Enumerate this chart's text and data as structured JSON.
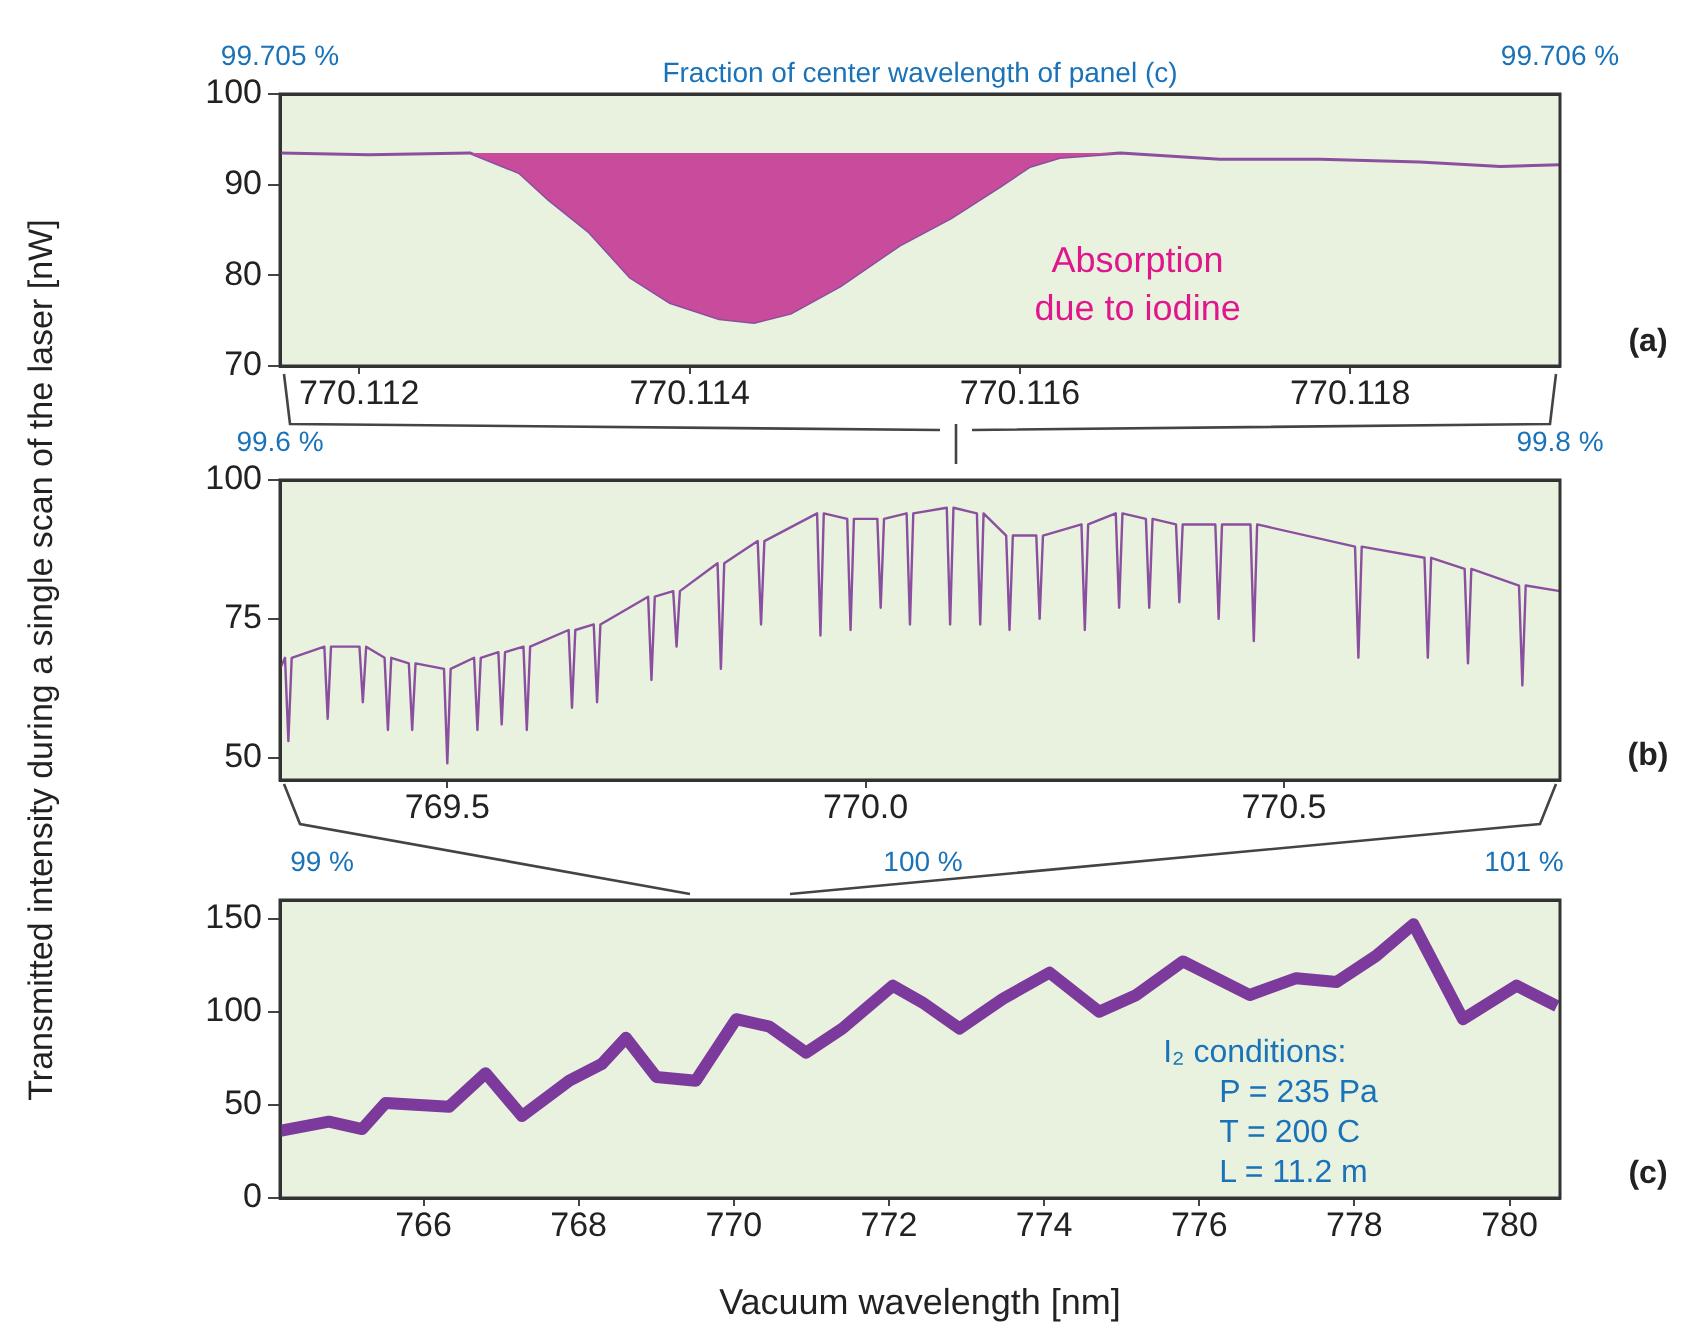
{
  "chart_data": [
    {
      "type": "line",
      "marker": "none",
      "x2label": "Fraction of center wavelength of panel (c)",
      "x": [
        770.11152,
        770.11206,
        770.11267,
        770.11297,
        770.11315,
        770.11339,
        770.11364,
        770.11388,
        770.11418,
        770.11439,
        770.11461,
        770.11491,
        770.11527,
        770.11558,
        770.11588,
        770.11606,
        770.11624,
        770.11661,
        770.11721,
        770.11782,
        770.11842,
        770.11891,
        770.11927
      ],
      "series": [
        {
          "color": "#8a4f9e",
          "values": [
            93.5,
            93.3,
            93.5,
            91.3,
            88.3,
            84.8,
            79.8,
            77.0,
            75.2,
            74.8,
            75.8,
            78.8,
            83.3,
            86.3,
            89.8,
            92.0,
            93.0,
            93.5,
            92.8,
            92.8,
            92.5,
            92.0,
            92.2
          ],
          "lower": [
            null,
            null,
            93.5,
            91.3,
            88.3,
            84.8,
            79.8,
            77.0,
            75.2,
            74.8,
            75.8,
            78.8,
            83.3,
            86.3,
            89.8,
            92.0,
            93.0,
            93.5,
            null,
            null,
            null,
            null,
            null
          ],
          "upper": [
            null,
            null,
            93.5,
            93.5,
            93.5,
            93.5,
            93.5,
            93.5,
            93.5,
            93.5,
            93.5,
            93.5,
            93.5,
            93.5,
            93.5,
            93.5,
            93.5,
            93.5,
            null,
            null,
            null,
            null,
            null
          ]
        }
      ],
      "xlim": [
        770.11152,
        770.11927
      ],
      "xticks": [
        770.112,
        770.114,
        770.116,
        770.118
      ],
      "ylim": [
        70,
        100
      ],
      "yticks": [
        70,
        80,
        90,
        100
      ],
      "x2lim": [
        99.705,
        99.706
      ],
      "x2ticks": [
        {
          "value": 99.705,
          "label": "99.705 %"
        },
        {
          "value": 99.706,
          "label": "99.706 %"
        }
      ],
      "annotations": [
        "(a)",
        "Absorption\ndue to iodine"
      ]
    },
    {
      "type": "line",
      "marker": "none",
      "ylabel": "Transmitted intensity during a single scan of the laser [nW]",
      "x": [
        769.3,
        769.306,
        769.31,
        769.314,
        769.353,
        769.357,
        769.361,
        769.395,
        769.399,
        769.403,
        769.425,
        769.429,
        769.433,
        769.454,
        769.458,
        769.462,
        769.496,
        769.5,
        769.504,
        769.532,
        769.536,
        769.54,
        769.561,
        769.565,
        769.569,
        769.591,
        769.595,
        769.599,
        769.645,
        769.649,
        769.653,
        769.675,
        769.679,
        769.683,
        769.74,
        769.744,
        769.748,
        769.77,
        769.774,
        769.778,
        769.823,
        769.827,
        769.831,
        769.871,
        769.875,
        769.879,
        769.942,
        769.946,
        769.95,
        769.978,
        769.982,
        769.986,
        770.014,
        770.018,
        770.022,
        770.049,
        770.053,
        770.057,
        770.097,
        770.101,
        770.105,
        770.133,
        770.137,
        770.141,
        770.168,
        770.172,
        770.176,
        770.204,
        770.208,
        770.212,
        770.258,
        770.262,
        770.266,
        770.299,
        770.303,
        770.307,
        770.335,
        770.339,
        770.343,
        770.371,
        770.375,
        770.379,
        770.418,
        770.422,
        770.426,
        770.46,
        770.464,
        770.468,
        770.585,
        770.589,
        770.593,
        770.668,
        770.672,
        770.676,
        770.716,
        770.72,
        770.724,
        770.781,
        770.785,
        770.789,
        770.83
      ],
      "series": [
        {
          "color": "#8a4f9e",
          "values": [
            66,
            68,
            53,
            68,
            70,
            57,
            70,
            70,
            60,
            70,
            68,
            55,
            68,
            67,
            55,
            67,
            66,
            49,
            66,
            68,
            55,
            68,
            69,
            56,
            69,
            70,
            55,
            70,
            73,
            59,
            73,
            74,
            60,
            74,
            79,
            64,
            79,
            80,
            70,
            80,
            85,
            66,
            85,
            89,
            74,
            89,
            94,
            72,
            94,
            93,
            73,
            93,
            93,
            77,
            93,
            94,
            74,
            94,
            95,
            74,
            95,
            94,
            74,
            94,
            90,
            73,
            90,
            90,
            75,
            90,
            92,
            73,
            92,
            94,
            77,
            94,
            93,
            77,
            93,
            92,
            78,
            92,
            92,
            75,
            92,
            92,
            71,
            92,
            88,
            68,
            88,
            86,
            68,
            86,
            84,
            67,
            84,
            81,
            63,
            81,
            80
          ]
        }
      ],
      "xlim": [
        769.3,
        770.83
      ],
      "xticks": [
        769.5,
        {
          "value": 770,
          "label": "770.0"
        },
        770.5
      ],
      "ylim": [
        46,
        100
      ],
      "yticks": [
        50,
        75,
        100
      ],
      "x2lim": [
        99.6,
        99.8
      ],
      "x2ticks": [
        {
          "value": 99.6,
          "label": "99.6 %"
        },
        {
          "value": 99.8,
          "label": "99.8 %"
        }
      ],
      "annotations": [
        "(b)"
      ]
    },
    {
      "type": "line",
      "marker": "none",
      "xlabel": "Vacuum wavelength [nm]",
      "x": [
        764.15,
        764.78,
        765.21,
        765.51,
        766.33,
        766.8,
        767.27,
        767.88,
        768.3,
        768.61,
        769.0,
        769.51,
        770.03,
        770.46,
        770.93,
        771.4,
        772.05,
        772.43,
        772.91,
        773.47,
        774.07,
        774.71,
        775.19,
        775.79,
        776.65,
        777.25,
        777.77,
        778.28,
        778.76,
        779.4,
        780.09,
        780.61
      ],
      "series": [
        {
          "color": "#7b3a9c",
          "values": [
            36,
            41,
            37,
            51,
            49,
            67,
            44,
            63,
            72,
            86,
            65,
            63,
            96,
            92,
            78,
            91,
            114,
            105,
            91,
            107,
            121,
            100,
            109,
            127,
            109,
            118,
            116,
            130,
            147,
            96,
            114,
            103
          ]
        }
      ],
      "xlim": [
        764.15,
        780.65
      ],
      "xticks": [
        766,
        768,
        770,
        772,
        774,
        776,
        778,
        780
      ],
      "ylim": [
        0,
        160
      ],
      "yticks": [
        0,
        50,
        100,
        150
      ],
      "x2lim": [
        98.93,
        101.06
      ],
      "x2ticks": [
        {
          "value": 99,
          "label": "99 %"
        },
        {
          "value": 100,
          "label": "100 %"
        },
        {
          "value": 101,
          "label": "101 %"
        }
      ],
      "annotations": [
        "(c)",
        "I₂ conditions:\nP = 235 Pa\nT = 200 C\nL = 11.2 m"
      ]
    }
  ]
}
